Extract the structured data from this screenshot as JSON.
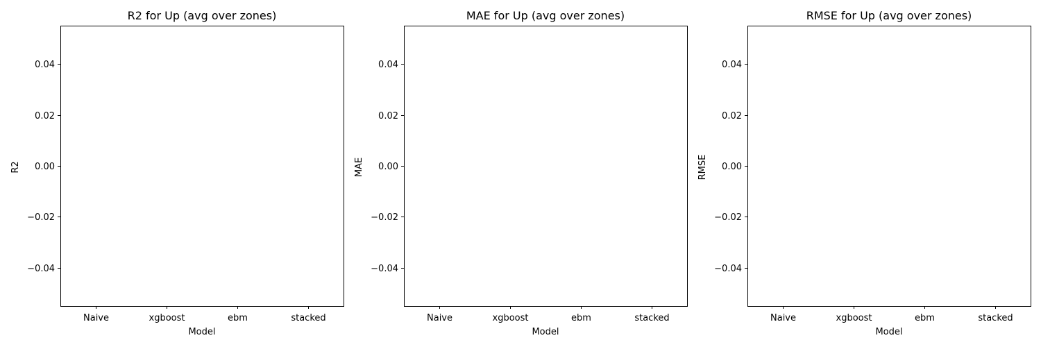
{
  "chart_data": [
    {
      "type": "bar",
      "title": "R2 for Up (avg over zones)",
      "xlabel": "Model",
      "ylabel": "R2",
      "categories": [
        "Naive",
        "xgboost",
        "ebm",
        "stacked"
      ],
      "values": [
        null,
        null,
        null,
        null
      ],
      "ylim": [
        -0.055,
        0.055
      ],
      "yticks": [
        -0.04,
        -0.02,
        0.0,
        0.02,
        0.04
      ],
      "ytick_labels": [
        "−0.04",
        "−0.02",
        "0.00",
        "0.02",
        "0.04"
      ],
      "grid": false
    },
    {
      "type": "bar",
      "title": "MAE for Up (avg over zones)",
      "xlabel": "Model",
      "ylabel": "MAE",
      "categories": [
        "Naive",
        "xgboost",
        "ebm",
        "stacked"
      ],
      "values": [
        null,
        null,
        null,
        null
      ],
      "ylim": [
        -0.055,
        0.055
      ],
      "yticks": [
        -0.04,
        -0.02,
        0.0,
        0.02,
        0.04
      ],
      "ytick_labels": [
        "−0.04",
        "−0.02",
        "0.00",
        "0.02",
        "0.04"
      ],
      "grid": false
    },
    {
      "type": "bar",
      "title": "RMSE for Up (avg over zones)",
      "xlabel": "Model",
      "ylabel": "RMSE",
      "categories": [
        "Naive",
        "xgboost",
        "ebm",
        "stacked"
      ],
      "values": [
        null,
        null,
        null,
        null
      ],
      "ylim": [
        -0.055,
        0.055
      ],
      "yticks": [
        -0.04,
        -0.02,
        0.0,
        0.02,
        0.04
      ],
      "ytick_labels": [
        "−0.04",
        "−0.02",
        "0.00",
        "0.02",
        "0.04"
      ],
      "grid": false
    }
  ]
}
